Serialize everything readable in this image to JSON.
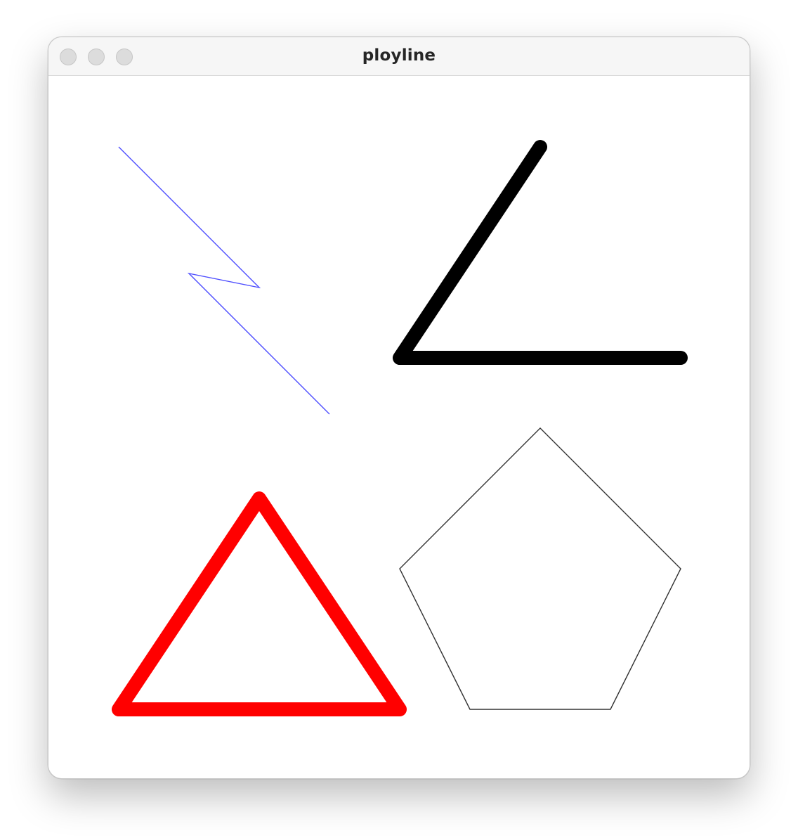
{
  "window": {
    "title": "ployline",
    "controls": [
      "close-icon",
      "minimize-icon",
      "zoom-icon"
    ]
  },
  "canvas": {
    "background": "#ffffff",
    "shapes": [
      {
        "name": "zigzag-polyline",
        "kind": "open",
        "stroke": "#4d4dff"
      },
      {
        "name": "angle-polyline",
        "kind": "open",
        "stroke": "#000000"
      },
      {
        "name": "triangle-polygon",
        "kind": "closed",
        "stroke": "#ff0000"
      },
      {
        "name": "pentagon-polygon",
        "kind": "closed",
        "stroke": "#333333"
      }
    ]
  }
}
